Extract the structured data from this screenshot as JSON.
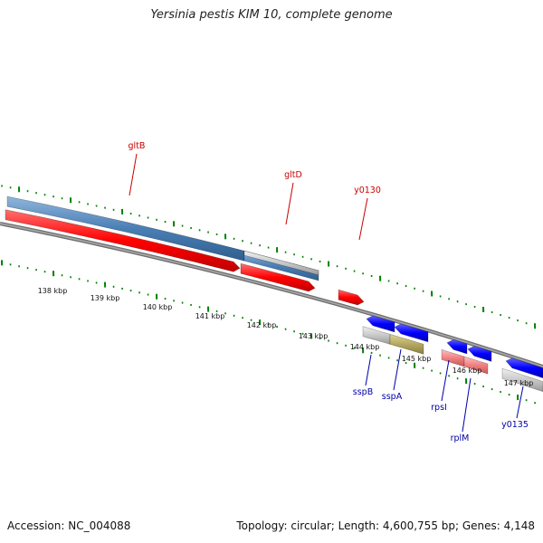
{
  "title": "Yersinia pestis KIM 10, complete genome",
  "footer": {
    "accession": "Accession: NC_004088",
    "summary": "Topology: circular; Length: 4,600,755 bp; Genes: 4,148"
  },
  "colors": {
    "forward_gene": "#ff0000",
    "reverse_gene": "#0000ff",
    "blue_cds": "#4a7fb5",
    "grey_cds": "#c8c8c8",
    "olive_cds": "#b5a960",
    "pink_cds": "#f08080",
    "tick": "#008000",
    "backbone": "#808080",
    "forward_label": "#cc0000",
    "reverse_label": "#0000aa"
  },
  "scale_labels": [
    "138 kbp",
    "139 kbp",
    "140 kbp",
    "141 kbp",
    "142 kbp",
    "143 kbp",
    "144 kbp",
    "145 kbp",
    "146 kbp",
    "147 kbp"
  ],
  "forward_genes": [
    {
      "name": "gltB"
    },
    {
      "name": "gltD"
    },
    {
      "name": "y0130"
    }
  ],
  "reverse_genes": [
    {
      "name": "sspB"
    },
    {
      "name": "sspA"
    },
    {
      "name": "rpsI"
    },
    {
      "name": "rplM"
    },
    {
      "name": "y0135"
    }
  ]
}
